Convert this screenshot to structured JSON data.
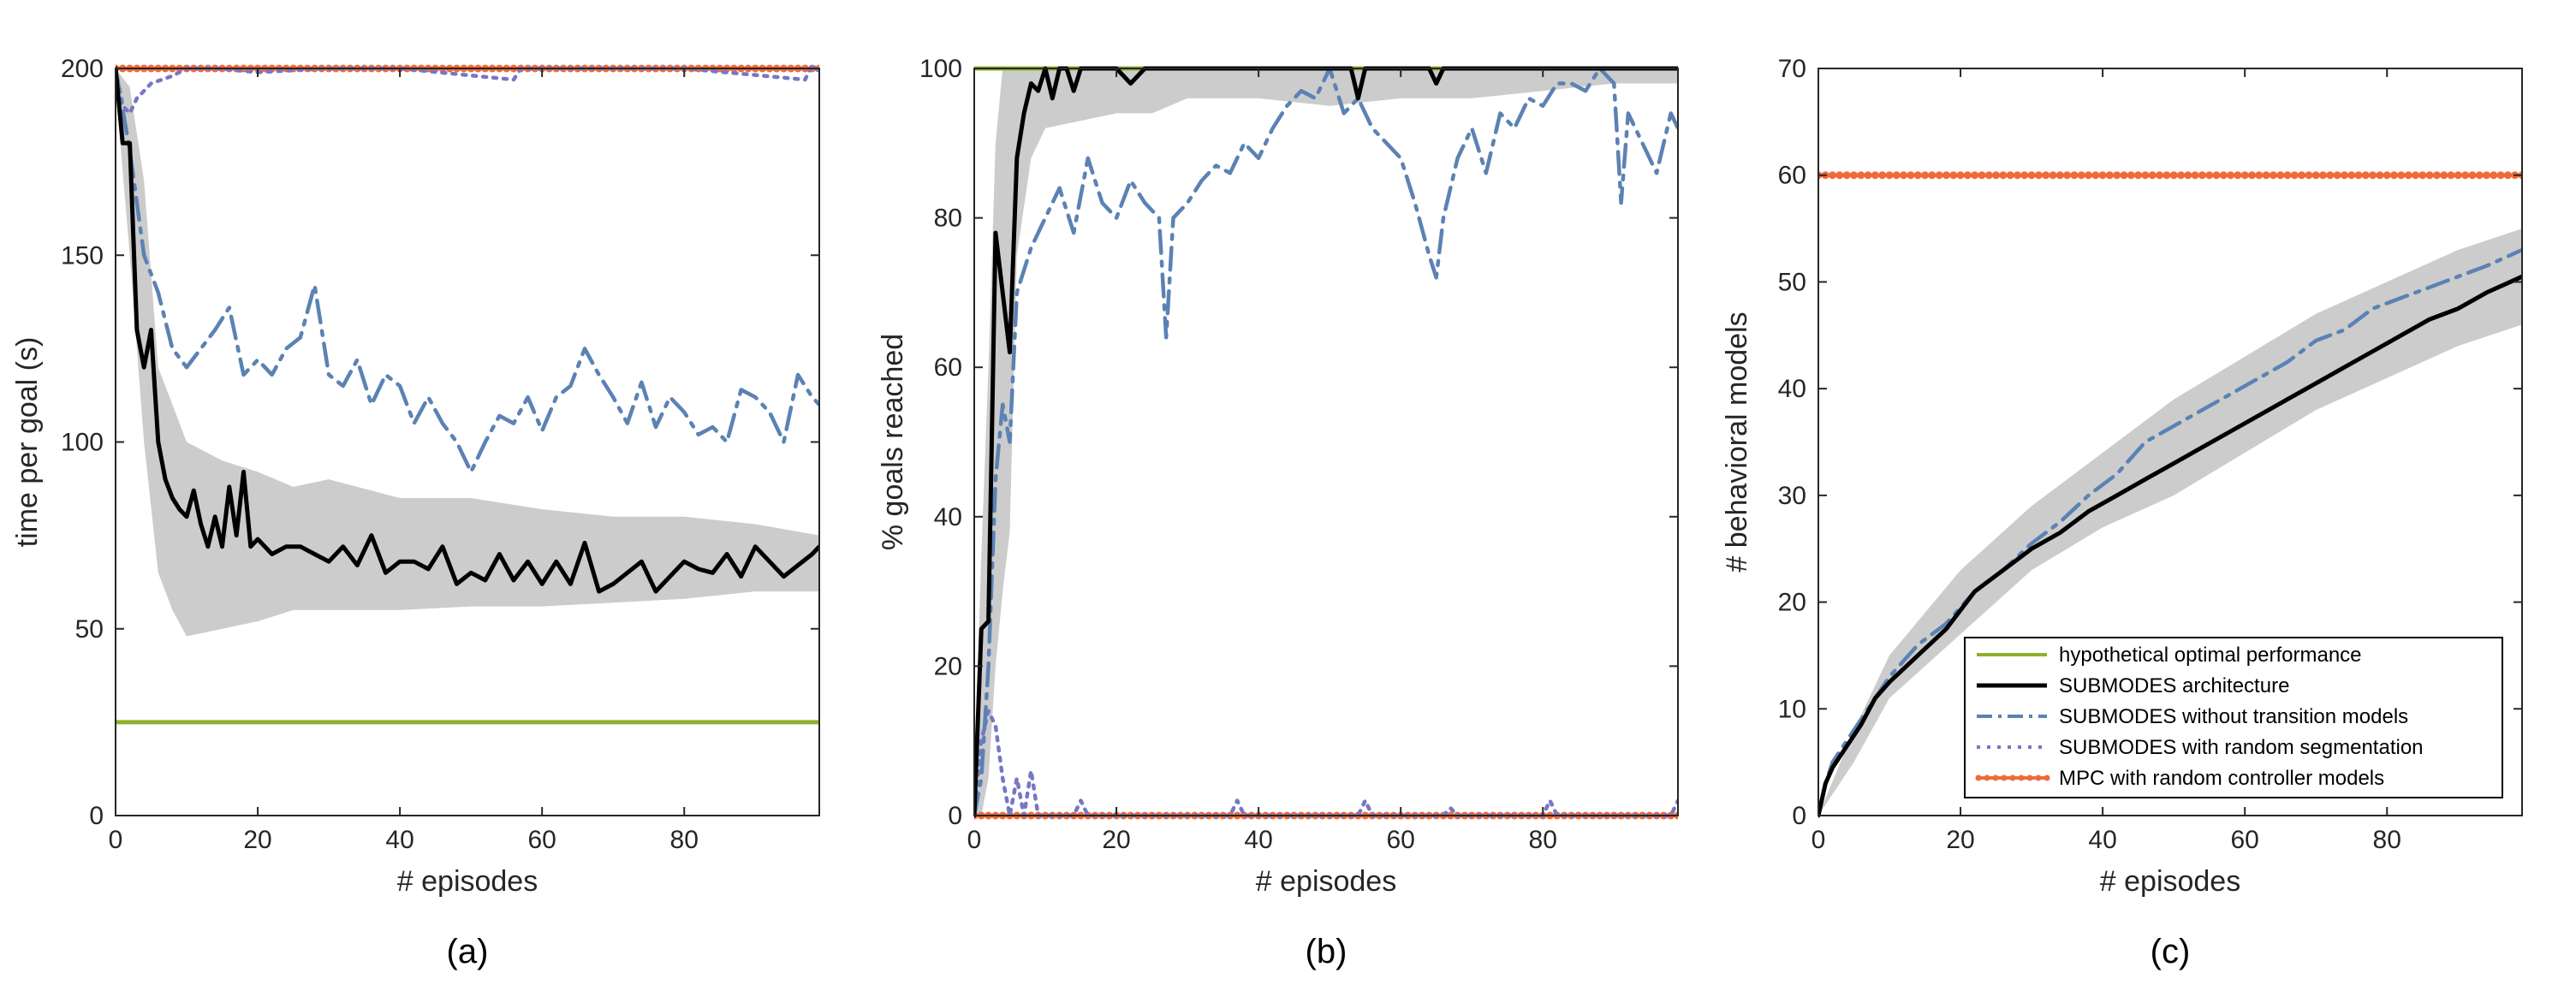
{
  "colors": {
    "optimal": "#8fb02c",
    "submodes": "#000000",
    "no_transition": "#5b82b4",
    "random_seg": "#7677c4",
    "mpc": "#ef6a3a",
    "band": "#cccccc",
    "axis": "#262626"
  },
  "legend": {
    "placement": "bottom-right of panel (c)",
    "entries": [
      {
        "label": "hypothetical optimal performance",
        "color_key": "optimal",
        "style": "solid"
      },
      {
        "label": "SUBMODES architecture",
        "color_key": "submodes",
        "style": "solid"
      },
      {
        "label": "SUBMODES without transition models",
        "color_key": "no_transition",
        "style": "dashdot"
      },
      {
        "label": "SUBMODES with random segmentation",
        "color_key": "random_seg",
        "style": "dotted"
      },
      {
        "label": "MPC with random controller models",
        "color_key": "mpc",
        "style": "solid-dots"
      }
    ]
  },
  "chart_data": [
    {
      "type": "line",
      "panel_label": "(a)",
      "xlabel": "# episodes",
      "ylabel": "time per goal (s)",
      "xlim": [
        0,
        99
      ],
      "ylim": [
        0,
        200
      ],
      "xticks": [
        0,
        20,
        40,
        60,
        80
      ],
      "yticks": [
        0,
        50,
        100,
        150,
        200
      ],
      "grid": false,
      "band": {
        "x": [
          0,
          2,
          4,
          6,
          8,
          10,
          15,
          20,
          25,
          30,
          40,
          50,
          60,
          70,
          80,
          90,
          99
        ],
        "upper": [
          200,
          195,
          170,
          120,
          110,
          100,
          95,
          92,
          88,
          90,
          85,
          85,
          82,
          80,
          80,
          78,
          75
        ],
        "lower": [
          195,
          150,
          100,
          65,
          55,
          48,
          50,
          52,
          55,
          55,
          55,
          56,
          56,
          57,
          58,
          60,
          60
        ]
      },
      "series": [
        {
          "color_key": "optimal",
          "style": "solid",
          "x": [
            0,
            99
          ],
          "y": [
            25,
            25
          ]
        },
        {
          "color_key": "mpc",
          "style": "solid-dots",
          "x": [
            0,
            99
          ],
          "y": [
            200,
            200
          ]
        },
        {
          "color_key": "random_seg",
          "style": "dotted",
          "x": [
            0,
            1,
            2,
            3,
            5,
            8,
            10,
            14,
            20,
            30,
            40,
            56,
            57,
            70,
            80,
            97,
            98,
            99
          ],
          "y": [
            200,
            190,
            188,
            192,
            196,
            198,
            200,
            200,
            199,
            200,
            200,
            197,
            200,
            200,
            200,
            197,
            201,
            199
          ]
        },
        {
          "color_key": "no_transition",
          "style": "dashdot",
          "x": [
            0,
            2,
            4,
            6,
            8,
            10,
            12,
            14,
            16,
            18,
            20,
            22,
            24,
            26,
            28,
            30,
            32,
            34,
            36,
            38,
            40,
            42,
            44,
            46,
            48,
            50,
            52,
            54,
            56,
            58,
            60,
            62,
            64,
            66,
            68,
            70,
            72,
            74,
            76,
            78,
            80,
            82,
            84,
            86,
            88,
            90,
            92,
            94,
            96,
            98,
            99
          ],
          "y": [
            200,
            178,
            150,
            140,
            125,
            120,
            125,
            130,
            136,
            118,
            122,
            118,
            125,
            128,
            142,
            118,
            115,
            122,
            110,
            118,
            115,
            105,
            112,
            105,
            100,
            92,
            100,
            107,
            105,
            112,
            103,
            112,
            115,
            125,
            118,
            112,
            105,
            116,
            104,
            112,
            108,
            102,
            104,
            100,
            114,
            112,
            108,
            100,
            118,
            112,
            110
          ]
        },
        {
          "color_key": "submodes",
          "style": "solid",
          "x": [
            0,
            1,
            2,
            3,
            4,
            5,
            6,
            7,
            8,
            9,
            10,
            11,
            12,
            13,
            14,
            15,
            16,
            17,
            18,
            19,
            20,
            22,
            24,
            26,
            28,
            30,
            32,
            34,
            36,
            38,
            40,
            42,
            44,
            46,
            48,
            50,
            52,
            54,
            56,
            58,
            60,
            62,
            64,
            66,
            68,
            70,
            72,
            74,
            76,
            78,
            80,
            82,
            84,
            86,
            88,
            90,
            92,
            94,
            96,
            98,
            99
          ],
          "y": [
            200,
            180,
            180,
            130,
            120,
            130,
            100,
            90,
            85,
            82,
            80,
            87,
            78,
            72,
            80,
            72,
            88,
            75,
            92,
            72,
            74,
            70,
            72,
            72,
            70,
            68,
            72,
            67,
            75,
            65,
            68,
            68,
            66,
            72,
            62,
            65,
            63,
            70,
            63,
            68,
            62,
            68,
            62,
            73,
            60,
            62,
            65,
            68,
            60,
            64,
            68,
            66,
            65,
            70,
            64,
            72,
            68,
            64,
            67,
            70,
            72
          ]
        }
      ]
    },
    {
      "type": "line",
      "panel_label": "(b)",
      "xlabel": "# episodes",
      "ylabel": "% goals reached",
      "xlim": [
        0,
        99
      ],
      "ylim": [
        0,
        100
      ],
      "xticks": [
        0,
        20,
        40,
        60,
        80
      ],
      "yticks": [
        0,
        20,
        40,
        60,
        80,
        100
      ],
      "grid": false,
      "band": {
        "x": [
          0,
          1,
          2,
          3,
          4,
          5,
          6,
          8,
          10,
          15,
          20,
          25,
          30,
          40,
          50,
          60,
          70,
          80,
          90,
          99
        ],
        "upper": [
          5,
          35,
          60,
          90,
          100,
          100,
          100,
          100,
          100,
          100,
          100,
          100,
          100,
          100,
          100,
          100,
          100,
          100,
          100,
          100
        ],
        "lower": [
          0,
          0,
          5,
          20,
          30,
          38,
          75,
          88,
          92,
          93,
          94,
          94,
          96,
          96,
          95,
          96,
          96,
          97,
          98,
          98
        ]
      },
      "series": [
        {
          "color_key": "optimal",
          "style": "solid",
          "x": [
            0,
            99
          ],
          "y": [
            100,
            100
          ]
        },
        {
          "color_key": "mpc",
          "style": "solid-dots",
          "x": [
            0,
            99
          ],
          "y": [
            0,
            0
          ]
        },
        {
          "color_key": "random_seg",
          "style": "dotted",
          "x": [
            0,
            1,
            2,
            3,
            4,
            5,
            6,
            7,
            8,
            9,
            10,
            11,
            12,
            14,
            15,
            16,
            36,
            37,
            38,
            54,
            55,
            56,
            66,
            67,
            68,
            80,
            81,
            82,
            98,
            99
          ],
          "y": [
            0,
            10,
            14,
            12,
            5,
            0,
            5,
            0,
            6,
            0,
            0,
            0,
            0,
            0,
            2,
            0,
            0,
            2,
            0,
            0,
            2,
            0,
            0,
            1,
            0,
            0,
            2,
            0,
            0,
            2
          ]
        },
        {
          "color_key": "no_transition",
          "style": "dashdot",
          "x": [
            0,
            1,
            2,
            3,
            4,
            5,
            6,
            8,
            10,
            12,
            14,
            16,
            18,
            20,
            22,
            24,
            26,
            27,
            28,
            30,
            32,
            34,
            36,
            38,
            40,
            42,
            44,
            46,
            48,
            50,
            52,
            54,
            56,
            58,
            60,
            62,
            64,
            65,
            66,
            68,
            70,
            72,
            74,
            76,
            78,
            80,
            82,
            84,
            86,
            88,
            90,
            91,
            92,
            94,
            96,
            98,
            99
          ],
          "y": [
            0,
            5,
            20,
            45,
            55,
            50,
            70,
            76,
            80,
            84,
            78,
            88,
            82,
            80,
            85,
            82,
            80,
            64,
            80,
            82,
            85,
            87,
            86,
            90,
            88,
            92,
            95,
            97,
            96,
            100,
            94,
            96,
            92,
            90,
            88,
            82,
            75,
            72,
            80,
            88,
            92,
            86,
            94,
            92,
            96,
            95,
            98,
            98,
            97,
            100,
            98,
            82,
            94,
            90,
            86,
            94,
            92
          ]
        },
        {
          "color_key": "submodes",
          "style": "solid",
          "x": [
            0,
            1,
            2,
            3,
            4,
            5,
            6,
            7,
            8,
            9,
            10,
            11,
            12,
            13,
            14,
            15,
            16,
            18,
            20,
            22,
            24,
            26,
            28,
            30,
            35,
            40,
            45,
            50,
            53,
            54,
            55,
            56,
            60,
            64,
            65,
            66,
            70,
            80,
            90,
            99
          ],
          "y": [
            0,
            25,
            26,
            78,
            70,
            62,
            88,
            94,
            98,
            97,
            100,
            96,
            100,
            100,
            97,
            100,
            100,
            100,
            100,
            98,
            100,
            100,
            100,
            100,
            100,
            100,
            100,
            100,
            100,
            96,
            100,
            100,
            100,
            100,
            98,
            100,
            100,
            100,
            100,
            100
          ]
        }
      ]
    },
    {
      "type": "line",
      "panel_label": "(c)",
      "xlabel": "# episodes",
      "ylabel": "# behavioral models",
      "xlim": [
        0,
        99
      ],
      "ylim": [
        0,
        70
      ],
      "xticks": [
        0,
        20,
        40,
        60,
        80
      ],
      "yticks": [
        0,
        10,
        20,
        30,
        40,
        50,
        60,
        70
      ],
      "grid": false,
      "band": {
        "x": [
          0,
          5,
          10,
          20,
          30,
          40,
          50,
          60,
          70,
          80,
          90,
          99
        ],
        "upper": [
          0,
          8,
          15,
          23,
          29,
          34,
          39,
          43,
          47,
          50,
          53,
          55
        ],
        "lower": [
          0,
          5,
          11,
          17,
          23,
          27,
          30,
          34,
          38,
          41,
          44,
          46
        ]
      },
      "series": [
        {
          "color_key": "mpc",
          "style": "solid-dots",
          "x": [
            0,
            99
          ],
          "y": [
            60,
            60
          ]
        },
        {
          "color_key": "no_transition",
          "style": "dashdot",
          "x": [
            0,
            1,
            2,
            4,
            6,
            8,
            10,
            14,
            18,
            22,
            26,
            30,
            34,
            38,
            42,
            46,
            50,
            54,
            58,
            62,
            66,
            70,
            74,
            78,
            82,
            86,
            90,
            94,
            99
          ],
          "y": [
            0,
            3,
            5,
            7,
            9,
            11,
            13,
            16,
            18,
            21,
            23,
            25.5,
            27.5,
            30,
            32,
            35,
            36.5,
            38,
            39.5,
            41,
            42.5,
            44.5,
            45.5,
            47.5,
            48.5,
            49.5,
            50.5,
            51.5,
            53
          ]
        },
        {
          "color_key": "submodes",
          "style": "solid",
          "x": [
            0,
            1,
            2,
            4,
            6,
            8,
            10,
            14,
            18,
            22,
            26,
            30,
            34,
            38,
            42,
            46,
            50,
            54,
            58,
            62,
            66,
            70,
            74,
            78,
            82,
            86,
            90,
            94,
            99
          ],
          "y": [
            0,
            3,
            4.5,
            6.5,
            8.5,
            11,
            12.5,
            15,
            17.5,
            21,
            23,
            25,
            26.5,
            28.5,
            30,
            31.5,
            33,
            34.5,
            36,
            37.5,
            39,
            40.5,
            42,
            43.5,
            45,
            46.5,
            47.5,
            49,
            50.5
          ]
        }
      ]
    }
  ]
}
